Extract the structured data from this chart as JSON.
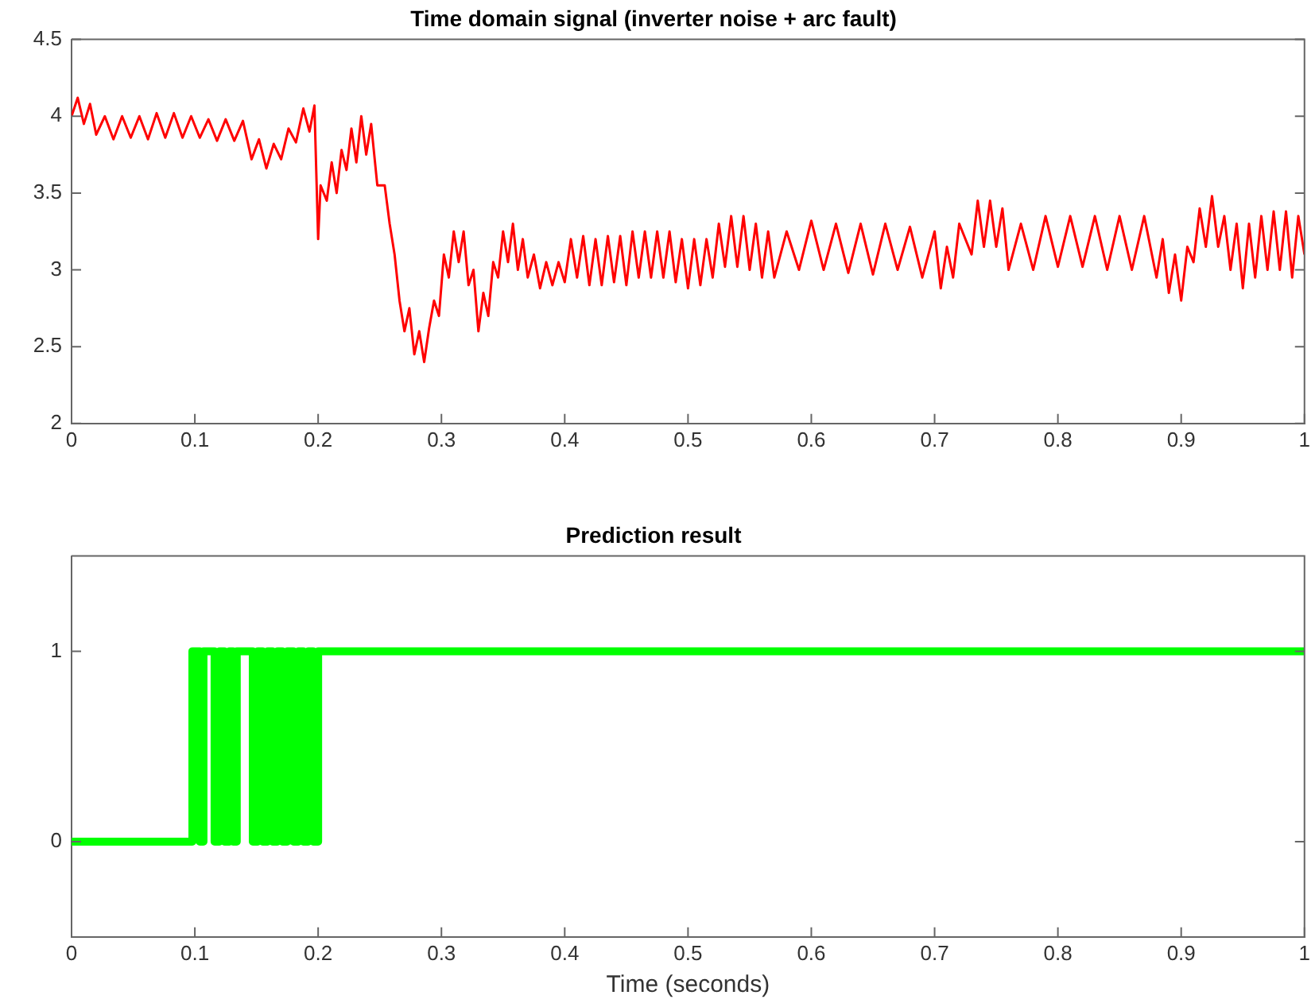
{
  "chart_data": [
    {
      "type": "line",
      "title": "Time domain signal (inverter noise + arc fault)",
      "xlim": [
        0,
        1
      ],
      "xticks": [
        0,
        0.1,
        0.2,
        0.3,
        0.4,
        0.5,
        0.6,
        0.7,
        0.8,
        0.9,
        1
      ],
      "ylim": [
        2,
        4.5
      ],
      "yticks": [
        2,
        2.5,
        3,
        3.5,
        4,
        4.5
      ],
      "grid": false,
      "series": [
        {
          "color": "#ff0000",
          "x": [
            0,
            0.005,
            0.01,
            0.015,
            0.02,
            0.027,
            0.034,
            0.041,
            0.048,
            0.055,
            0.062,
            0.069,
            0.076,
            0.083,
            0.09,
            0.097,
            0.104,
            0.111,
            0.118,
            0.125,
            0.132,
            0.139,
            0.146,
            0.152,
            0.158,
            0.164,
            0.17,
            0.176,
            0.182,
            0.188,
            0.193,
            0.197,
            0.2,
            0.202,
            0.207,
            0.211,
            0.215,
            0.219,
            0.223,
            0.227,
            0.231,
            0.235,
            0.239,
            0.243,
            0.248,
            0.254,
            0.258,
            0.262,
            0.266,
            0.27,
            0.274,
            0.278,
            0.282,
            0.286,
            0.29,
            0.294,
            0.298,
            0.302,
            0.306,
            0.31,
            0.314,
            0.318,
            0.322,
            0.326,
            0.33,
            0.334,
            0.338,
            0.342,
            0.346,
            0.35,
            0.354,
            0.358,
            0.362,
            0.366,
            0.37,
            0.375,
            0.38,
            0.385,
            0.39,
            0.395,
            0.4,
            0.405,
            0.41,
            0.415,
            0.42,
            0.425,
            0.43,
            0.435,
            0.44,
            0.445,
            0.45,
            0.455,
            0.46,
            0.465,
            0.47,
            0.475,
            0.48,
            0.485,
            0.49,
            0.495,
            0.5,
            0.505,
            0.51,
            0.515,
            0.52,
            0.525,
            0.53,
            0.535,
            0.54,
            0.545,
            0.55,
            0.555,
            0.56,
            0.565,
            0.57,
            0.58,
            0.59,
            0.6,
            0.61,
            0.62,
            0.63,
            0.64,
            0.65,
            0.66,
            0.67,
            0.68,
            0.69,
            0.7,
            0.705,
            0.71,
            0.715,
            0.72,
            0.73,
            0.735,
            0.74,
            0.745,
            0.75,
            0.755,
            0.76,
            0.77,
            0.78,
            0.79,
            0.8,
            0.81,
            0.82,
            0.83,
            0.84,
            0.85,
            0.86,
            0.87,
            0.88,
            0.885,
            0.89,
            0.895,
            0.9,
            0.905,
            0.91,
            0.915,
            0.92,
            0.925,
            0.93,
            0.935,
            0.94,
            0.945,
            0.95,
            0.955,
            0.96,
            0.965,
            0.97,
            0.975,
            0.98,
            0.985,
            0.99,
            0.995,
            1
          ],
          "values": [
            4.0,
            4.12,
            3.95,
            4.08,
            3.88,
            4.0,
            3.85,
            4.0,
            3.86,
            4.0,
            3.85,
            4.02,
            3.86,
            4.02,
            3.86,
            4.0,
            3.86,
            3.98,
            3.84,
            3.98,
            3.84,
            3.97,
            3.72,
            3.85,
            3.66,
            3.82,
            3.72,
            3.92,
            3.83,
            4.05,
            3.9,
            4.07,
            3.2,
            3.55,
            3.45,
            3.7,
            3.5,
            3.78,
            3.65,
            3.92,
            3.7,
            4.0,
            3.75,
            3.95,
            3.55,
            3.55,
            3.3,
            3.1,
            2.8,
            2.6,
            2.75,
            2.45,
            2.6,
            2.4,
            2.62,
            2.8,
            2.7,
            3.1,
            2.95,
            3.25,
            3.05,
            3.25,
            2.9,
            3.0,
            2.6,
            2.85,
            2.7,
            3.05,
            2.95,
            3.25,
            3.05,
            3.3,
            3.0,
            3.2,
            2.95,
            3.1,
            2.88,
            3.05,
            2.9,
            3.05,
            2.92,
            3.2,
            2.95,
            3.22,
            2.9,
            3.2,
            2.9,
            3.22,
            2.92,
            3.22,
            2.9,
            3.25,
            2.95,
            3.25,
            2.95,
            3.25,
            2.95,
            3.25,
            2.92,
            3.2,
            2.88,
            3.2,
            2.9,
            3.2,
            2.95,
            3.3,
            3.02,
            3.35,
            3.02,
            3.35,
            3.0,
            3.3,
            2.95,
            3.25,
            2.95,
            3.25,
            3.0,
            3.32,
            3.0,
            3.3,
            2.98,
            3.3,
            2.97,
            3.3,
            3.0,
            3.28,
            2.95,
            3.25,
            2.88,
            3.15,
            2.95,
            3.3,
            3.1,
            3.45,
            3.15,
            3.45,
            3.15,
            3.4,
            3.0,
            3.3,
            3.0,
            3.35,
            3.02,
            3.35,
            3.02,
            3.35,
            3.0,
            3.35,
            3.0,
            3.35,
            2.95,
            3.2,
            2.85,
            3.1,
            2.8,
            3.15,
            3.05,
            3.4,
            3.15,
            3.48,
            3.15,
            3.35,
            3.0,
            3.3,
            2.88,
            3.3,
            2.95,
            3.35,
            3.0,
            3.38,
            3.0,
            3.38,
            2.95,
            3.35,
            3.1
          ]
        }
      ]
    },
    {
      "type": "step",
      "title": "Prediction result",
      "xlabel": "Time (seconds)",
      "xlim": [
        0,
        1
      ],
      "xticks": [
        0,
        0.1,
        0.2,
        0.3,
        0.4,
        0.5,
        0.6,
        0.7,
        0.8,
        0.9,
        1
      ],
      "ylim": [
        -0.5,
        1.5
      ],
      "yticks": [
        0,
        1
      ],
      "grid": false,
      "series": [
        {
          "color": "#00ff00",
          "x": [
            0,
            0.098,
            0.104,
            0.107,
            0.116,
            0.12,
            0.124,
            0.128,
            0.131,
            0.134,
            0.147,
            0.151,
            0.155,
            0.159,
            0.163,
            0.167,
            0.171,
            0.175,
            0.18,
            0.184,
            0.188,
            0.192,
            0.196,
            0.2,
            1
          ],
          "values": [
            0,
            1,
            0,
            1,
            0,
            1,
            0,
            1,
            0,
            1,
            0,
            1,
            0,
            1,
            0,
            1,
            0,
            1,
            0,
            1,
            0,
            1,
            0,
            1,
            1
          ]
        }
      ]
    }
  ]
}
